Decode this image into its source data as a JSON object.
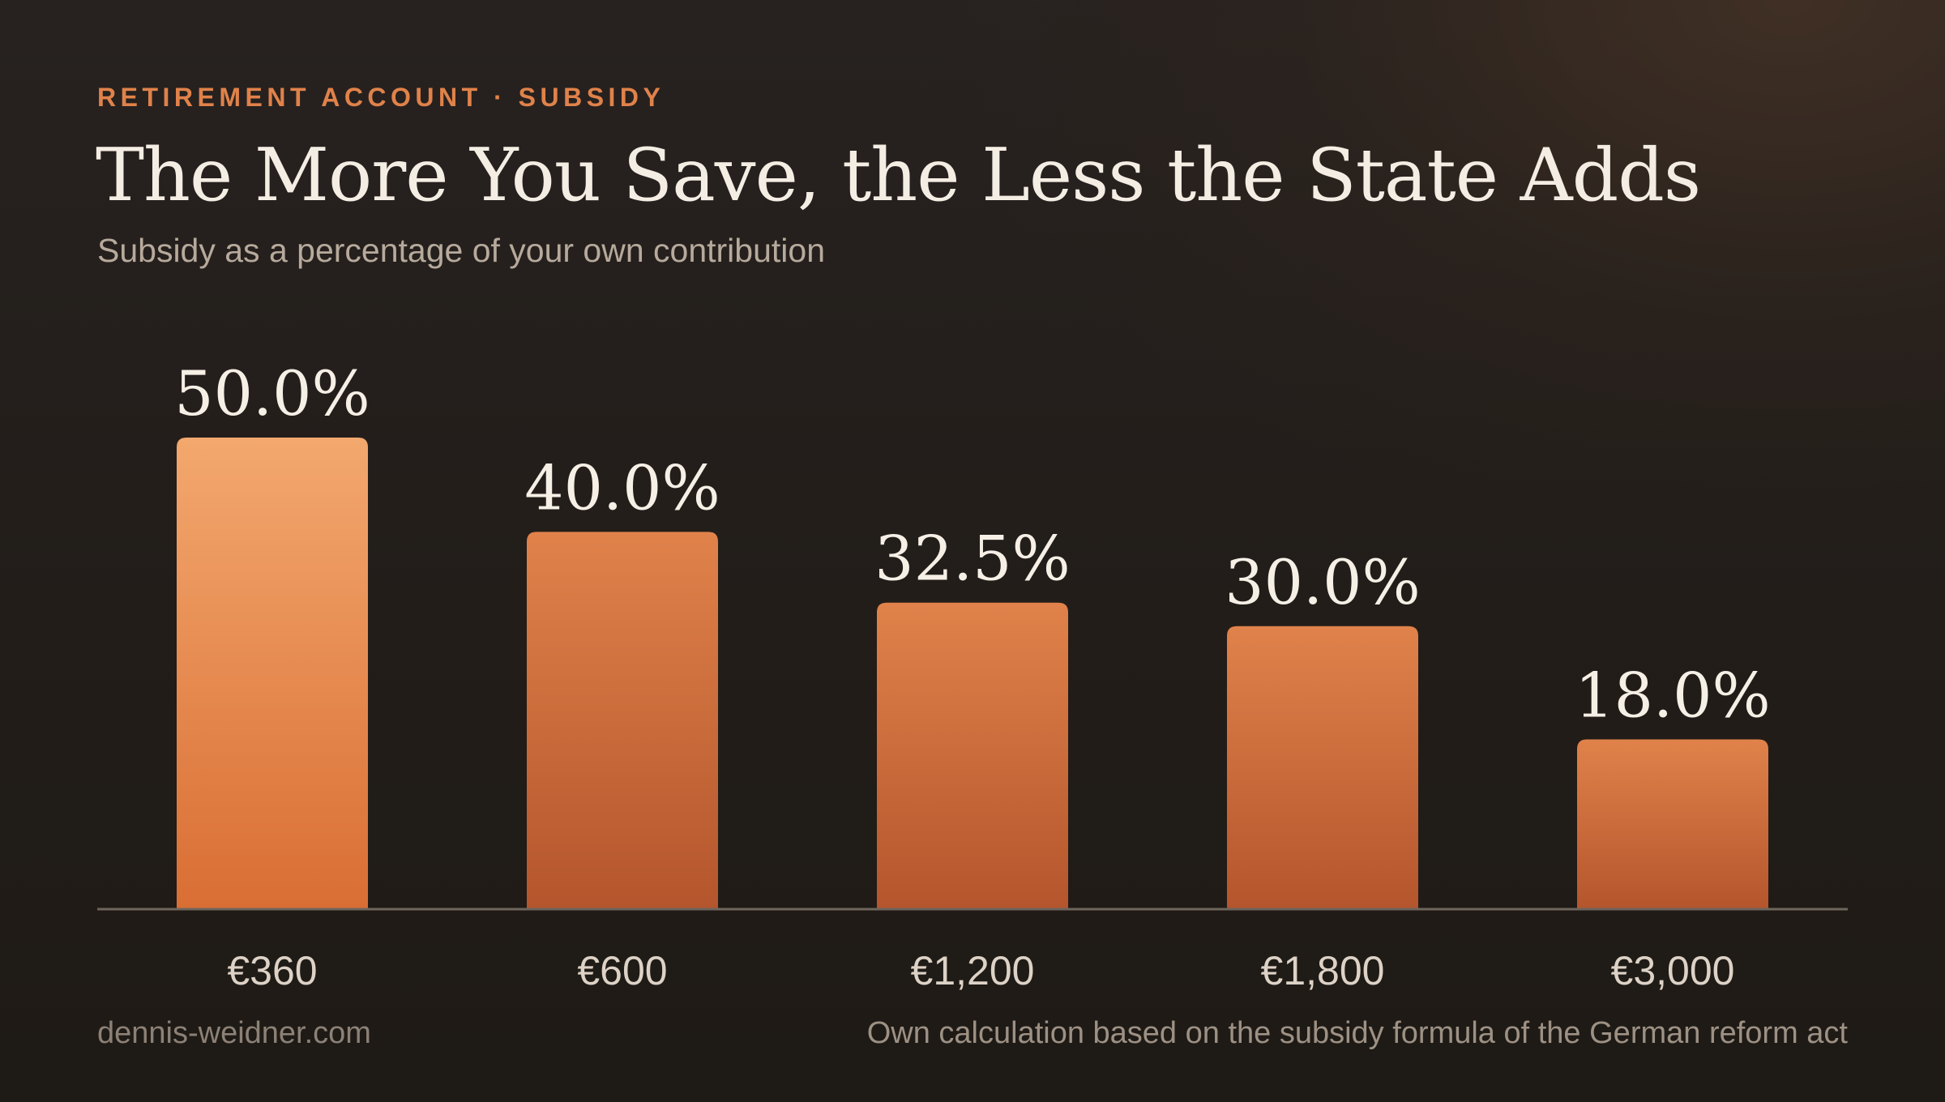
{
  "header": {
    "eyebrow": "RETIREMENT ACCOUNT · SUBSIDY",
    "title": "The More You Save, the Less the State Adds",
    "subtitle": "Subsidy as a percentage of your own contribution"
  },
  "footer": {
    "source_site": "dennis-weidner.com",
    "note": "Own calculation based on the subsidy formula of the German reform act"
  },
  "colors": {
    "accent": "#e0824a",
    "bar_highlight_top": "#f3a86e",
    "bar_highlight_bottom": "#d96e34",
    "bar_top": "#e0824a",
    "bar_bottom": "#b4552d",
    "axis": "#6e655c"
  },
  "chart_data": {
    "type": "bar",
    "title": "The More You Save, the Less the State Adds",
    "subtitle": "Subsidy as a percentage of your own contribution",
    "xlabel": "",
    "ylabel": "",
    "categories": [
      "€360",
      "€600",
      "€1,200",
      "€1,800",
      "€3,000"
    ],
    "values": [
      50.0,
      40.0,
      32.5,
      30.0,
      18.0
    ],
    "value_labels": [
      "50.0%",
      "40.0%",
      "32.5%",
      "30.0%",
      "18.0%"
    ],
    "unit": "%",
    "ylim": [
      0,
      50
    ],
    "grid": false,
    "legend": "none",
    "highlighted_category": "€360"
  }
}
